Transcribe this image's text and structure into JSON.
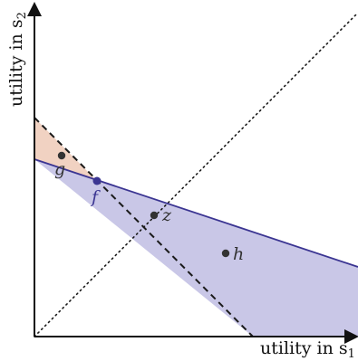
{
  "axes": {
    "x_label_main": "utility in s",
    "x_label_sub": "1",
    "y_label_main": "utility in s",
    "y_label_sub": "2"
  },
  "points": {
    "f": "f",
    "g": "g",
    "z": "z",
    "h": "h"
  },
  "colors": {
    "axis": "#111111",
    "blue_region": "#c9c7e7",
    "blue_line": "#3b3592",
    "orange_region": "#f1d2c2",
    "dashed_line": "#1a1a1a",
    "dot": "#333333"
  }
}
